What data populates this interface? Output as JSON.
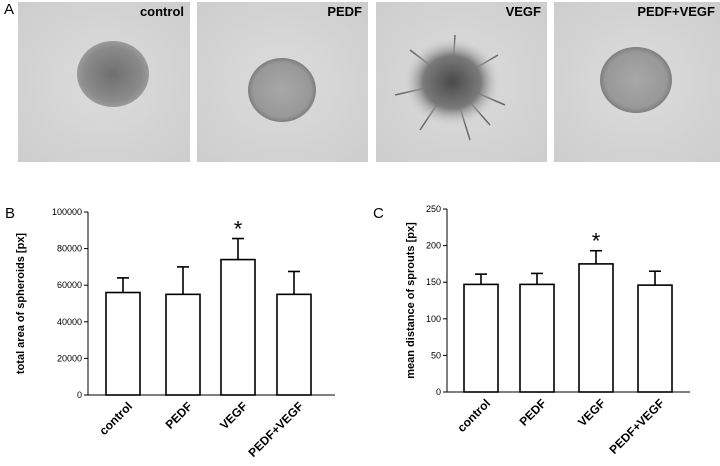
{
  "panel_a": {
    "letter": "A",
    "images": [
      "control",
      "PEDF",
      "VEGF",
      "PEDF+VEGF"
    ]
  },
  "chart_data": [
    {
      "type": "bar",
      "panel": "B",
      "y_label": "total area  of spheroids [px]",
      "categories": [
        "control",
        "PEDF",
        "VEGF",
        "PEDF+VEGF"
      ],
      "values": [
        56000,
        55000,
        74000,
        55000
      ],
      "errors": [
        8000,
        15000,
        11500,
        12500
      ],
      "color": "#ffffff",
      "ylim": [
        0,
        100000
      ],
      "yticks": [
        0,
        20000,
        40000,
        60000,
        80000,
        100000
      ],
      "annotations": [
        {
          "text": "*",
          "x": "VEGF"
        }
      ]
    },
    {
      "type": "bar",
      "panel": "C",
      "y_label": "mean distance  of sprouts [px]",
      "categories": [
        "control",
        "PEDF",
        "VEGF",
        "PEDF+VEGF"
      ],
      "values": [
        147,
        147,
        175,
        146
      ],
      "errors": [
        14,
        15,
        18,
        19
      ],
      "color": "#ffffff",
      "ylim": [
        0,
        250
      ],
      "yticks": [
        0,
        50,
        100,
        150,
        200,
        250
      ],
      "annotations": [
        {
          "text": "*",
          "x": "VEGF"
        }
      ]
    }
  ]
}
